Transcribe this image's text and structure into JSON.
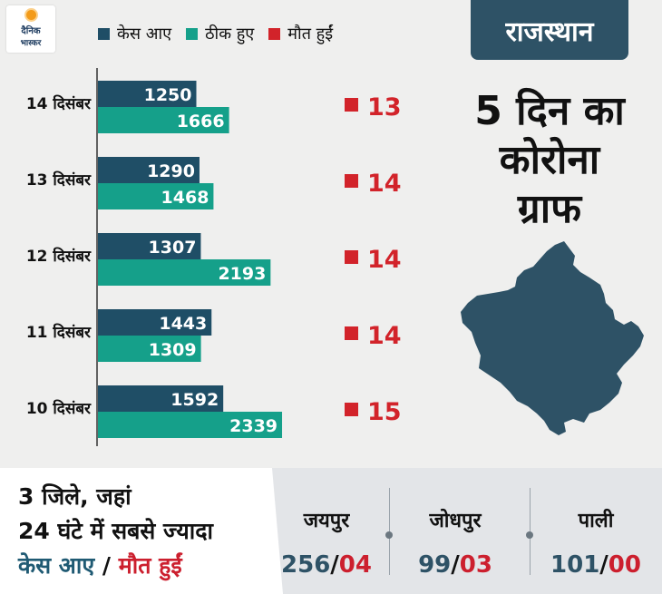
{
  "logo": {
    "line1": "दैनिक",
    "line2": "भास्कर"
  },
  "legend": [
    {
      "label": "केस आए",
      "color": "#1f4e66"
    },
    {
      "label": "ठीक हुए",
      "color": "#15a08a"
    },
    {
      "label": "मौत हुईं",
      "color": "#d2232a"
    }
  ],
  "state": "राजस्थान",
  "title": [
    "5 दिन का",
    "कोरोना",
    "ग्राफ"
  ],
  "chart_data": {
    "type": "bar",
    "orientation": "horizontal",
    "categories": [
      "14 दिसंबर",
      "13 दिसंबर",
      "12 दिसंबर",
      "11 दिसंबर",
      "10 दिसंबर"
    ],
    "series": [
      {
        "name": "केस आए",
        "color": "#1f4e66",
        "values": [
          1250,
          1290,
          1307,
          1443,
          1592
        ]
      },
      {
        "name": "ठीक हुए",
        "color": "#15a08a",
        "values": [
          1666,
          1468,
          2193,
          1309,
          2339
        ]
      },
      {
        "name": "मौत हुईं",
        "color": "#d2232a",
        "values": [
          13,
          14,
          14,
          14,
          15
        ]
      }
    ]
  },
  "bottom": {
    "line1": "3 जिले, जहां",
    "line2": "24 घंटे में सबसे ज्यादा",
    "line3_cases": "केस आए",
    "line3_sep": "/",
    "line3_deaths": "मौत हुईं",
    "cities": [
      {
        "name": "जयपुर",
        "cases": "256",
        "sep": "/",
        "deaths": "04"
      },
      {
        "name": "जोधपुर",
        "cases": "99",
        "sep": "/",
        "deaths": "03"
      },
      {
        "name": "पाली",
        "cases": "101",
        "sep": "/",
        "deaths": "00"
      }
    ]
  }
}
